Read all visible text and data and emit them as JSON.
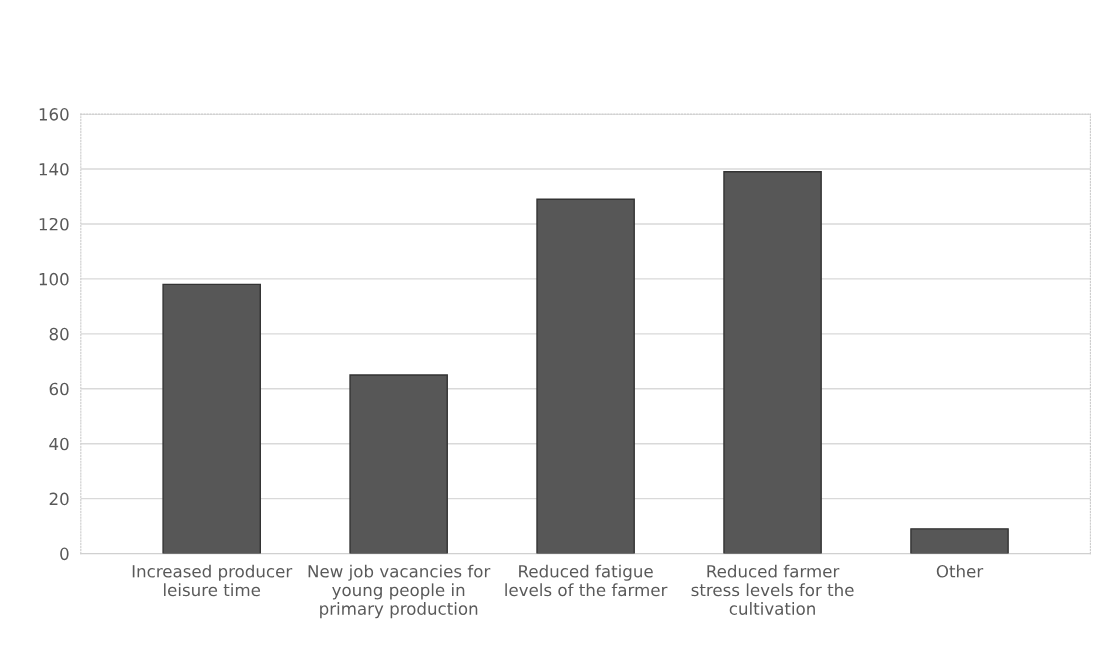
{
  "chart_data": {
    "type": "bar",
    "categories": [
      "Increased producer leisure time",
      "New job vacancies for young people in primary production",
      "Reduced fatigue levels of the farmer",
      "Reduced farmer stress levels for the cultivation",
      "Other"
    ],
    "values": [
      98,
      65,
      129,
      139,
      9
    ],
    "color": "#575757",
    "ylim": [
      0,
      160
    ],
    "yticks": [
      0,
      20,
      40,
      60,
      80,
      100,
      120,
      140,
      160
    ],
    "grid": "y"
  }
}
